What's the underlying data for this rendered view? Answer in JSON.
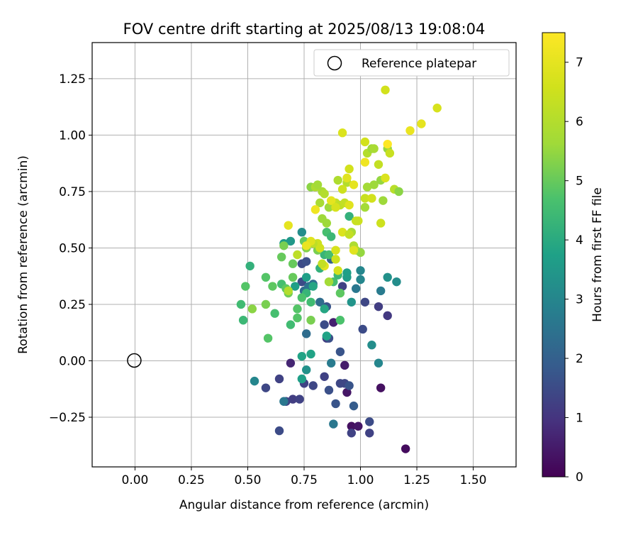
{
  "chart_data": {
    "type": "scatter",
    "title": "FOV centre drift starting at 2025/08/13 19:08:04",
    "xlabel": "Angular distance from reference (arcmin)",
    "ylabel": "Rotation from reference (arcmin)",
    "xlim": [
      -0.19,
      1.69
    ],
    "ylim": [
      -0.47,
      1.41
    ],
    "xticks": [
      0.0,
      0.25,
      0.5,
      0.75,
      1.0,
      1.25,
      1.5
    ],
    "xtick_labels": [
      "0.00",
      "0.25",
      "0.50",
      "0.75",
      "1.00",
      "1.25",
      "1.50"
    ],
    "yticks": [
      -0.25,
      0.0,
      0.25,
      0.5,
      0.75,
      1.0,
      1.25
    ],
    "ytick_labels": [
      "−0.25",
      "0.00",
      "0.25",
      "0.50",
      "0.75",
      "1.00",
      "1.25"
    ],
    "grid": true,
    "legend": {
      "placement": "top-right",
      "label": "Reference platepar"
    },
    "reference_point": {
      "x": 0.0,
      "y": 0.0
    },
    "colorbar": {
      "label": "Hours from first FF file",
      "colormap": "viridis",
      "range": [
        0,
        7.5
      ],
      "ticks": [
        0,
        1,
        2,
        3,
        4,
        5,
        6,
        7
      ],
      "tick_labels": [
        "0",
        "1",
        "2",
        "3",
        "4",
        "5",
        "6",
        "7"
      ]
    },
    "points": [
      [
        1.2,
        -0.39,
        0.2
      ],
      [
        0.96,
        -0.29,
        0.3
      ],
      [
        0.99,
        -0.29,
        0.4
      ],
      [
        1.09,
        -0.12,
        0.3
      ],
      [
        0.94,
        -0.14,
        0.4
      ],
      [
        0.93,
        -0.02,
        0.5
      ],
      [
        0.69,
        -0.01,
        0.7
      ],
      [
        0.88,
        0.17,
        0.6
      ],
      [
        0.96,
        -0.32,
        1.3
      ],
      [
        1.04,
        -0.32,
        1.3
      ],
      [
        1.04,
        -0.27,
        1.5
      ],
      [
        1.12,
        0.2,
        1.1
      ],
      [
        1.08,
        0.24,
        1.2
      ],
      [
        1.02,
        0.26,
        1.4
      ],
      [
        1.01,
        0.14,
        1.5
      ],
      [
        0.92,
        0.33,
        1.3
      ],
      [
        0.64,
        -0.08,
        1.3
      ],
      [
        0.7,
        -0.17,
        1.2
      ],
      [
        0.67,
        -0.18,
        1.3
      ],
      [
        0.73,
        -0.17,
        1.3
      ],
      [
        0.75,
        -0.1,
        1.3
      ],
      [
        0.79,
        -0.11,
        1.4
      ],
      [
        0.84,
        -0.07,
        1.3
      ],
      [
        0.86,
        -0.13,
        1.6
      ],
      [
        0.89,
        -0.19,
        1.7
      ],
      [
        0.91,
        -0.1,
        1.4
      ],
      [
        0.93,
        -0.1,
        1.4
      ],
      [
        0.95,
        -0.11,
        1.7
      ],
      [
        0.97,
        -0.2,
        1.9
      ],
      [
        0.85,
        0.1,
        1.2
      ],
      [
        0.86,
        0.1,
        1.6
      ],
      [
        0.84,
        0.16,
        1.5
      ],
      [
        0.91,
        0.04,
        1.7
      ],
      [
        0.85,
        0.24,
        1.7
      ],
      [
        0.74,
        0.35,
        1.5
      ],
      [
        0.74,
        0.43,
        1.5
      ],
      [
        0.76,
        0.44,
        1.6
      ],
      [
        0.64,
        -0.31,
        1.5
      ],
      [
        0.58,
        -0.12,
        1.4
      ],
      [
        0.87,
        0.45,
        2.0
      ],
      [
        0.76,
        0.12,
        2.3
      ],
      [
        0.75,
        0.31,
        2.3
      ],
      [
        0.77,
        0.33,
        2.5
      ],
      [
        0.79,
        0.34,
        2.4
      ],
      [
        0.82,
        0.26,
        2.3
      ],
      [
        0.87,
        -0.01,
        2.7
      ],
      [
        0.88,
        -0.28,
        2.6
      ],
      [
        0.98,
        0.32,
        2.6
      ],
      [
        1.05,
        0.07,
        3.2
      ],
      [
        1.09,
        0.31,
        2.7
      ],
      [
        1.12,
        0.37,
        3.3
      ],
      [
        1.16,
        0.35,
        3.2
      ],
      [
        1.08,
        -0.01,
        3.0
      ],
      [
        0.96,
        0.26,
        3.4
      ],
      [
        1.0,
        0.4,
        3.0
      ],
      [
        1.0,
        0.36,
        3.0
      ],
      [
        0.94,
        0.37,
        3.6
      ],
      [
        0.94,
        0.39,
        3.7
      ],
      [
        0.76,
        -0.04,
        3.3
      ],
      [
        0.53,
        -0.09,
        3.0
      ],
      [
        0.66,
        -0.18,
        2.6
      ],
      [
        0.74,
        -0.08,
        3.7
      ],
      [
        0.74,
        0.02,
        3.8
      ],
      [
        0.78,
        0.03,
        3.8
      ],
      [
        0.74,
        0.57,
        3.2
      ],
      [
        0.69,
        0.53,
        3.5
      ],
      [
        0.66,
        0.52,
        3.6
      ],
      [
        0.71,
        0.33,
        3.7
      ],
      [
        0.76,
        0.37,
        3.7
      ],
      [
        0.79,
        0.33,
        3.9
      ],
      [
        0.84,
        0.23,
        3.9
      ],
      [
        0.85,
        0.11,
        3.8
      ],
      [
        0.76,
        0.3,
        4.3
      ],
      [
        0.78,
        0.26,
        4.5
      ],
      [
        0.82,
        0.41,
        4.2
      ],
      [
        0.84,
        0.47,
        4.3
      ],
      [
        0.86,
        0.47,
        4.6
      ],
      [
        0.88,
        0.35,
        4.6
      ],
      [
        0.91,
        0.3,
        4.9
      ],
      [
        0.9,
        0.38,
        4.4
      ],
      [
        0.85,
        0.57,
        4.6
      ],
      [
        0.87,
        0.55,
        4.4
      ],
      [
        0.95,
        0.64,
        4.2
      ],
      [
        0.91,
        0.18,
        4.7
      ],
      [
        0.74,
        0.28,
        4.7
      ],
      [
        0.72,
        0.23,
        4.8
      ],
      [
        0.72,
        0.19,
        4.8
      ],
      [
        0.69,
        0.16,
        4.5
      ],
      [
        0.65,
        0.34,
        4.6
      ],
      [
        0.67,
        0.32,
        4.9
      ],
      [
        0.68,
        0.3,
        5.1
      ],
      [
        0.7,
        0.37,
        5.0
      ],
      [
        0.7,
        0.43,
        5.0
      ],
      [
        0.78,
        0.18,
        5.2
      ],
      [
        0.75,
        0.53,
        5.0
      ],
      [
        0.79,
        0.52,
        5.1
      ],
      [
        0.81,
        0.49,
        5.2
      ],
      [
        0.76,
        0.5,
        5.3
      ],
      [
        0.62,
        0.21,
        4.6
      ],
      [
        0.59,
        0.1,
        4.8
      ],
      [
        0.58,
        0.37,
        4.8
      ],
      [
        0.61,
        0.33,
        4.9
      ],
      [
        0.51,
        0.42,
        4.2
      ],
      [
        0.49,
        0.33,
        4.8
      ],
      [
        0.48,
        0.18,
        4.4
      ],
      [
        0.47,
        0.25,
        4.5
      ],
      [
        0.52,
        0.23,
        5.4
      ],
      [
        0.58,
        0.25,
        5.2
      ],
      [
        0.65,
        0.46,
        5.0
      ],
      [
        0.66,
        0.51,
        5.2
      ],
      [
        0.85,
        0.61,
        5.6
      ],
      [
        0.83,
        0.63,
        5.6
      ],
      [
        0.82,
        0.7,
        5.8
      ],
      [
        0.83,
        0.75,
        5.8
      ],
      [
        0.86,
        0.68,
        5.6
      ],
      [
        0.89,
        0.7,
        6.3
      ],
      [
        0.91,
        0.69,
        6.2
      ],
      [
        0.93,
        0.7,
        6.3
      ],
      [
        0.94,
        0.79,
        6.0
      ],
      [
        0.96,
        0.57,
        5.8
      ],
      [
        0.97,
        0.51,
        5.9
      ],
      [
        0.98,
        0.49,
        6.0
      ],
      [
        1.0,
        0.48,
        5.5
      ],
      [
        1.02,
        0.68,
        5.7
      ],
      [
        1.02,
        0.72,
        6.4
      ],
      [
        1.03,
        0.77,
        5.7
      ],
      [
        1.05,
        0.72,
        6.6
      ],
      [
        1.06,
        0.78,
        5.6
      ],
      [
        1.09,
        0.8,
        5.5
      ],
      [
        1.1,
        0.71,
        5.6
      ],
      [
        1.09,
        0.61,
        6.5
      ],
      [
        1.08,
        0.87,
        6.3
      ],
      [
        1.12,
        0.94,
        5.5
      ],
      [
        1.13,
        0.92,
        6.4
      ],
      [
        1.15,
        0.76,
        6.1
      ],
      [
        1.17,
        0.75,
        5.4
      ],
      [
        1.12,
        0.96,
        7.5
      ],
      [
        1.11,
        0.81,
        6.8
      ],
      [
        1.02,
        0.88,
        7.2
      ],
      [
        1.03,
        0.92,
        6.0
      ],
      [
        1.05,
        0.94,
        5.6
      ],
      [
        1.02,
        0.97,
        6.6
      ],
      [
        0.95,
        0.85,
        6.6
      ],
      [
        0.94,
        0.81,
        6.9
      ],
      [
        0.97,
        0.78,
        7.0
      ],
      [
        0.92,
        0.76,
        6.5
      ],
      [
        0.9,
        0.8,
        5.9
      ],
      [
        0.8,
        0.67,
        7.2
      ],
      [
        0.78,
        0.77,
        5.4
      ],
      [
        0.8,
        0.77,
        5.9
      ],
      [
        0.81,
        0.78,
        5.7
      ],
      [
        0.84,
        0.74,
        6.0
      ],
      [
        0.87,
        0.71,
        7.0
      ],
      [
        0.89,
        0.68,
        6.7
      ],
      [
        0.92,
        0.57,
        6.8
      ],
      [
        0.95,
        0.56,
        6.3
      ],
      [
        0.97,
        0.49,
        6.9
      ],
      [
        0.99,
        0.62,
        6.5
      ],
      [
        0.95,
        0.69,
        6.9
      ],
      [
        0.89,
        0.45,
        6.5
      ],
      [
        0.89,
        0.49,
        6.7
      ],
      [
        0.9,
        0.4,
        6.6
      ],
      [
        0.84,
        0.42,
        6.9
      ],
      [
        0.83,
        0.43,
        6.3
      ],
      [
        0.82,
        0.5,
        6.6
      ],
      [
        0.81,
        0.52,
        6.5
      ],
      [
        0.79,
        0.52,
        6.2
      ],
      [
        0.78,
        0.53,
        6.9
      ],
      [
        0.76,
        0.51,
        7.1
      ],
      [
        0.72,
        0.47,
        6.2
      ],
      [
        0.68,
        0.6,
        7.0
      ],
      [
        0.68,
        0.31,
        6.0
      ],
      [
        0.86,
        0.35,
        5.7
      ],
      [
        0.92,
        1.01,
        6.8
      ],
      [
        1.11,
        1.2,
        6.6
      ],
      [
        1.22,
        1.02,
        7.1
      ],
      [
        1.27,
        1.05,
        7.0
      ],
      [
        1.34,
        1.12,
        6.7
      ],
      [
        1.06,
        0.94,
        5.8
      ],
      [
        0.98,
        0.62,
        6.4
      ]
    ]
  }
}
